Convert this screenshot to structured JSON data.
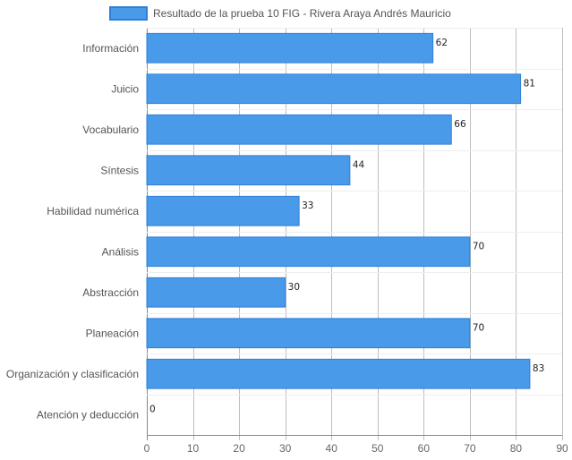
{
  "chart_data": {
    "type": "bar",
    "orientation": "horizontal",
    "legend": {
      "label": "Resultado de la prueba 10 FIG - Rivera Araya Andrés Mauricio",
      "placement": "top-center"
    },
    "categories": [
      "Información",
      "Juicio",
      "Vocabulario",
      "Síntesis",
      "Habilidad numérica",
      "Análisis",
      "Abstracción",
      "Planeación",
      "Organización y clasificación",
      "Atención y deducción"
    ],
    "series": [
      {
        "name": "Resultado de la prueba 10 FIG - Rivera Araya Andrés Mauricio",
        "values": [
          62,
          81,
          66,
          44,
          33,
          70,
          30,
          70,
          83,
          0
        ],
        "color": "#4a9aea",
        "border_color": "#2f7fd8"
      }
    ],
    "x_ticks": [
      0,
      10,
      20,
      30,
      40,
      50,
      60,
      70,
      80,
      90
    ],
    "xlim": [
      0,
      90
    ],
    "grid": true,
    "data_labels": true
  }
}
